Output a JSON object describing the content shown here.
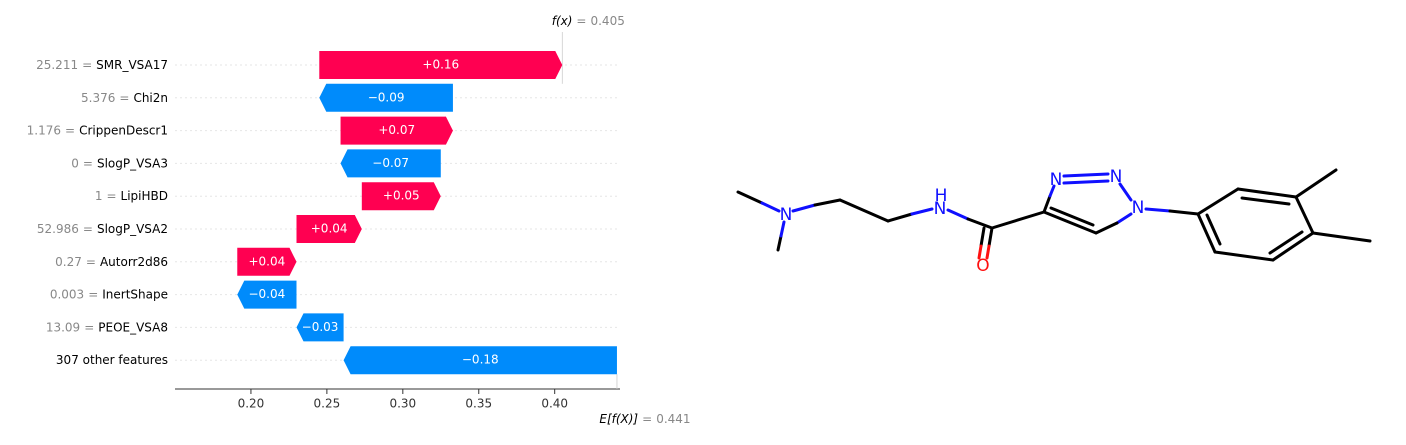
{
  "chart_data": {
    "type": "waterfall",
    "categories": [
      "SMR_VSA17",
      "Chi2n",
      "CrippenDescr1",
      "SlogP_VSA3",
      "LipiHBD",
      "SlogP_VSA2",
      "Autorr2d86",
      "InertShape",
      "PEOE_VSA8",
      "307 other features"
    ],
    "feature_values": [
      25.211,
      5.376,
      1.176,
      0,
      1,
      52.986,
      0.27,
      0.003,
      13.09,
      null
    ],
    "separator": "=",
    "values": [
      0.16,
      -0.088,
      0.074,
      -0.066,
      0.052,
      0.043,
      0.039,
      -0.039,
      -0.031,
      -0.18
    ],
    "value_labels": [
      "+0.16",
      "−0.09",
      "+0.07",
      "−0.07",
      "+0.05",
      "+0.04",
      "+0.04",
      "−0.04",
      "−0.03",
      "−0.18"
    ],
    "positive_color": "#ff0051",
    "negative_color": "#008bfb",
    "base_label": "E[f(X)]",
    "base_value": 0.441,
    "output_label": "f(x)",
    "output_value": 0.405,
    "xlim": [
      0.15,
      0.443
    ],
    "xticks": [
      {
        "value": 0.2,
        "label": "0.20"
      },
      0.25,
      {
        "value": 0.3,
        "label": "0.30"
      },
      0.35,
      {
        "value": 0.4,
        "label": "0.40"
      }
    ]
  },
  "molecule": {
    "atoms": [
      "N",
      "N",
      "H",
      "O",
      "N",
      "N",
      "N"
    ]
  }
}
